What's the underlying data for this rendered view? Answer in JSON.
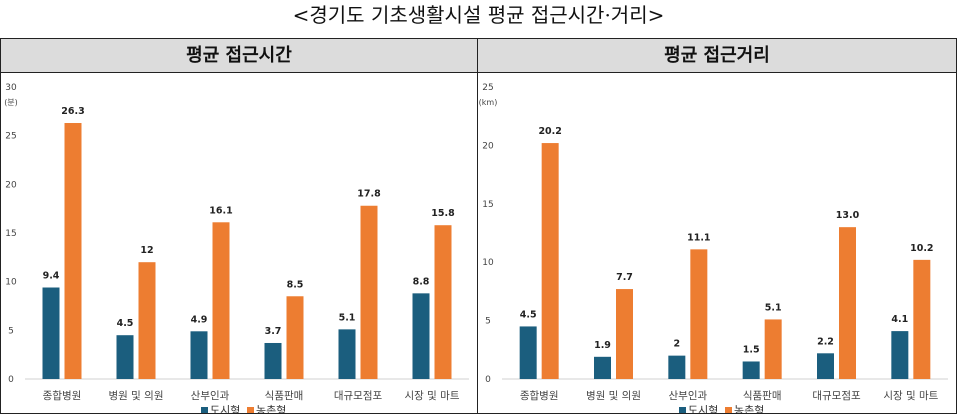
{
  "page_title": "<경기도 기초생활시설 평균 접근시간·거리>",
  "colors": {
    "urban": "#1b5e7e",
    "rural": "#ed7d31",
    "axis_text": "#444444",
    "label": "#222222"
  },
  "chart_data": [
    {
      "type": "bar",
      "title": "평균 접근시간",
      "ylabel": "(분)",
      "ylim": [
        0,
        30
      ],
      "yticks": [
        0,
        5,
        10,
        15,
        20,
        25,
        30
      ],
      "categories": [
        "종합병원",
        "병원 및 의원",
        "산부인과",
        "식품판매",
        "대규모점포",
        "시장 및 마트"
      ],
      "series": [
        {
          "name": "도시형",
          "values": [
            9.4,
            4.5,
            4.9,
            3.7,
            5.1,
            8.8
          ],
          "labels": [
            "9.4",
            "4.5",
            "4.9",
            "3.7",
            "5.1",
            "8.8"
          ]
        },
        {
          "name": "농촌형",
          "values": [
            26.3,
            12,
            16.1,
            8.5,
            17.8,
            15.8
          ],
          "labels": [
            "26.3",
            "12",
            "16.1",
            "8.5",
            "17.8",
            "15.8"
          ]
        }
      ]
    },
    {
      "type": "bar",
      "title": "평균 접근거리",
      "ylabel": "(km)",
      "ylim": [
        0,
        25
      ],
      "yticks": [
        0,
        5,
        10,
        15,
        20,
        25
      ],
      "categories": [
        "종합병원",
        "병원 및 의원",
        "산부인과",
        "식품판매",
        "대규모점포",
        "시장 및 마트"
      ],
      "series": [
        {
          "name": "도시형",
          "values": [
            4.5,
            1.9,
            2,
            1.5,
            2.2,
            4.1
          ],
          "labels": [
            "4.5",
            "1.9",
            "2",
            "1.5",
            "2.2",
            "4.1"
          ]
        },
        {
          "name": "농촌형",
          "values": [
            20.2,
            7.7,
            11.1,
            5.1,
            13.0,
            10.2
          ],
          "labels": [
            "20.2",
            "7.7",
            "11.1",
            "5.1",
            "13.0",
            "10.2"
          ]
        }
      ]
    }
  ]
}
